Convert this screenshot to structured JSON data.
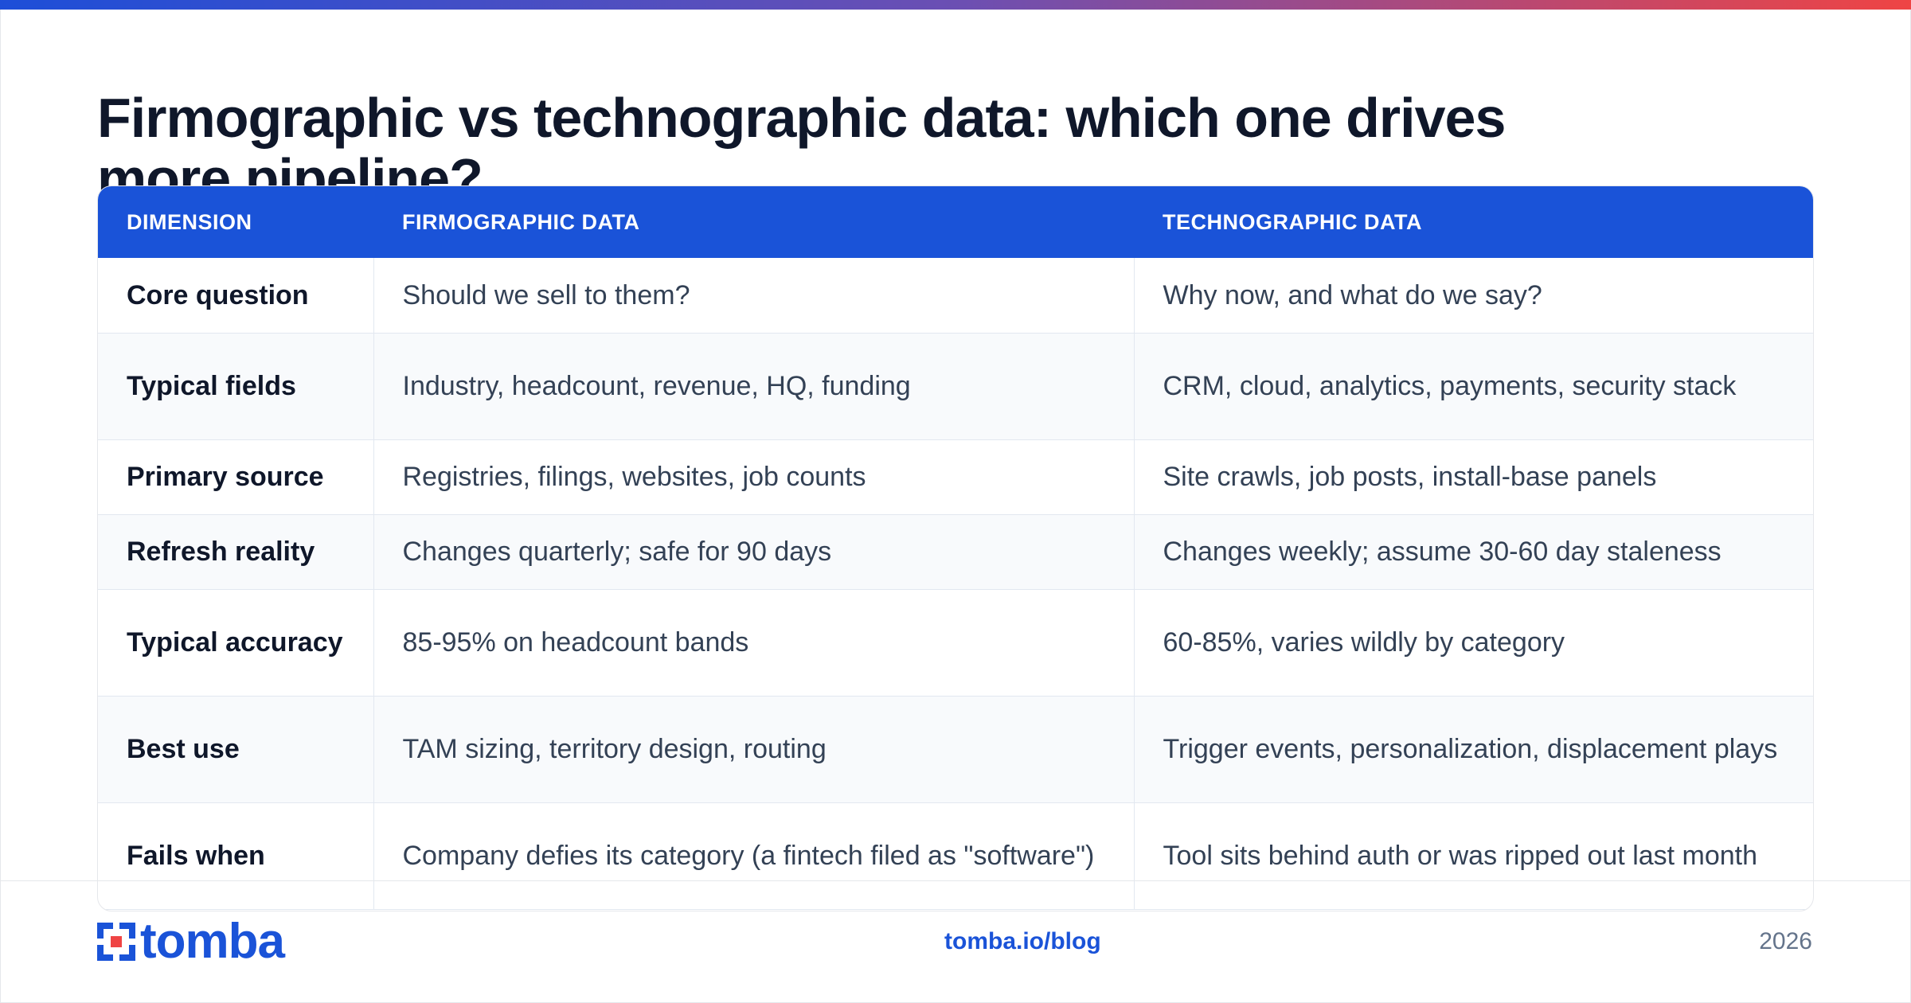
{
  "title": "Firmographic vs technographic data: which one drives more pipeline?",
  "table": {
    "headers": [
      "DIMENSION",
      "FIRMOGRAPHIC DATA",
      "TECHNOGRAPHIC DATA"
    ],
    "rows": [
      [
        "Core question",
        "Should we sell to them?",
        "Why now, and what do we say?"
      ],
      [
        "Typical fields",
        "Industry, headcount, revenue, HQ, funding",
        "CRM, cloud, analytics, payments, security stack"
      ],
      [
        "Primary source",
        "Registries, filings, websites, job counts",
        "Site crawls, job posts, install-base panels"
      ],
      [
        "Refresh reality",
        "Changes quarterly; safe for 90 days",
        "Changes weekly; assume 30-60 day staleness"
      ],
      [
        "Typical accuracy",
        "85-95% on headcount bands",
        "60-85%, varies wildly by category"
      ],
      [
        "Best use",
        "TAM sizing, territory design, routing",
        "Trigger events, personalization, displacement plays"
      ],
      [
        "Fails when",
        "Company defies its category (a fintech filed as \"software\")",
        "Tool sits behind auth or was ripped out last month"
      ]
    ]
  },
  "footer": {
    "logo_text": "tomba",
    "logo_icon": "tomba-logo-mark",
    "link": "tomba.io/blog",
    "year": "2026"
  },
  "colors": {
    "accent": "#1a53d8",
    "gradient_start": "#1d4ed8",
    "gradient_end": "#ef4444"
  }
}
